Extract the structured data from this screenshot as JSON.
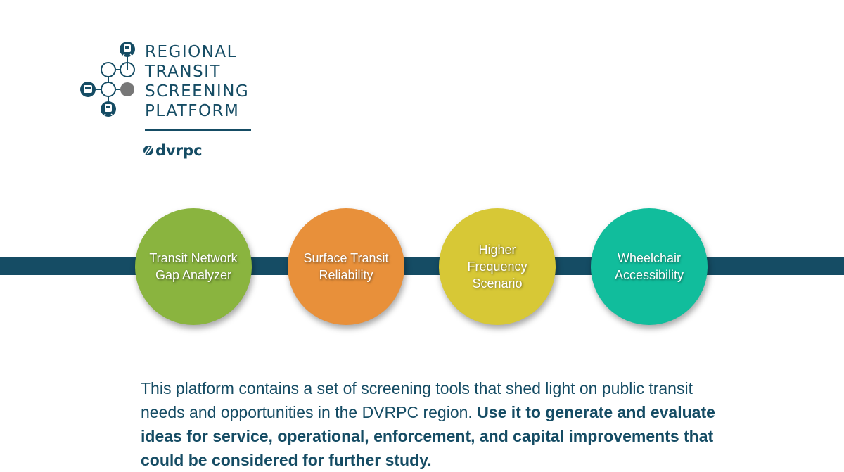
{
  "logo": {
    "title_lines": [
      "REGIONAL",
      "TRANSIT",
      "SCREENING",
      "PLATFORM"
    ],
    "org": "dvrpc",
    "icons": [
      "train-icon",
      "bus-icon",
      "rail-icon"
    ]
  },
  "colors": {
    "brand_navy": "#154c64",
    "gray_node": "#777777",
    "green": "#8ab43f",
    "orange": "#e8903a",
    "yellow": "#d7c836",
    "teal": "#11bd9c"
  },
  "tools": [
    {
      "label": "Transit Network\nGap Analyzer"
    },
    {
      "label": "Surface Transit\nReliability"
    },
    {
      "label": "Higher\nFrequency\nScenario"
    },
    {
      "label": "Wheelchair\nAccessibility"
    }
  ],
  "description": {
    "normal": "This platform contains a set of screening tools that shed light on public transit needs and opportunities in the DVRPC region. ",
    "bold": "Use it to generate and evaluate ideas for service, operational, enforcement, and capital improvements that could be considered for further study."
  }
}
